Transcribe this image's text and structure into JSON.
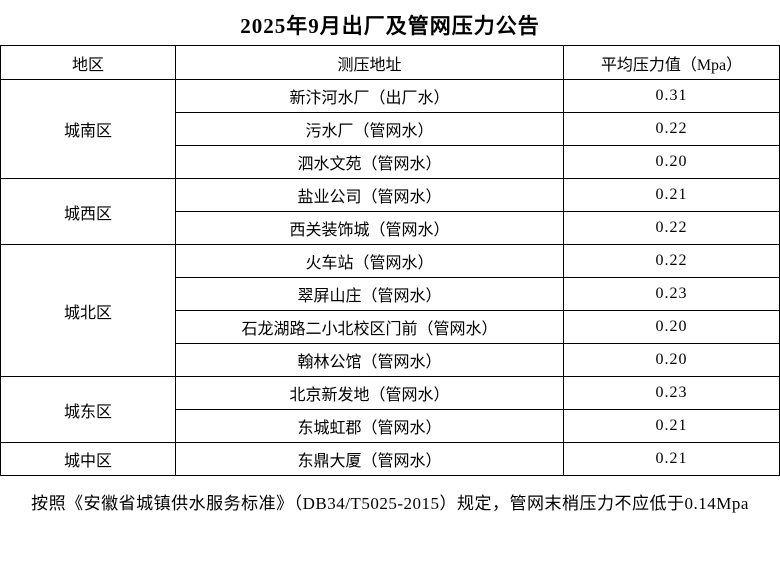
{
  "title": "2025年9月出厂及管网压力公告",
  "table": {
    "headers": [
      "地区",
      "测压地址",
      "平均压力值（Mpa）"
    ],
    "groups": [
      {
        "region": "城南区",
        "rows": [
          {
            "address": "新汴河水厂（出厂水）",
            "value": "0.31"
          },
          {
            "address": "污水厂（管网水）",
            "value": "0.22"
          },
          {
            "address": "泗水文苑（管网水）",
            "value": "0.20"
          }
        ]
      },
      {
        "region": "城西区",
        "rows": [
          {
            "address": "盐业公司（管网水）",
            "value": "0.21"
          },
          {
            "address": "西关装饰城（管网水）",
            "value": "0.22"
          }
        ]
      },
      {
        "region": "城北区",
        "rows": [
          {
            "address": "火车站（管网水）",
            "value": "0.22"
          },
          {
            "address": "翠屏山庄（管网水）",
            "value": "0.23"
          },
          {
            "address": "石龙湖路二小北校区门前（管网水）",
            "value": "0.20"
          },
          {
            "address": "翰林公馆（管网水）",
            "value": "0.20"
          }
        ]
      },
      {
        "region": "城东区",
        "rows": [
          {
            "address": "北京新发地（管网水）",
            "value": "0.23"
          },
          {
            "address": "东城虹郡（管网水）",
            "value": "0.21"
          }
        ]
      },
      {
        "region": "城中区",
        "rows": [
          {
            "address": "东鼎大厦（管网水）",
            "value": "0.21"
          }
        ]
      }
    ]
  },
  "footer": {
    "note": "按照《安徽省城镇供水服务标准》（DB34/T5025-2015）规定，管网末梢压力不应低于0.14Mpa"
  },
  "colors": {
    "background": "#ffffff",
    "text": "#000000",
    "border": "#000000"
  }
}
